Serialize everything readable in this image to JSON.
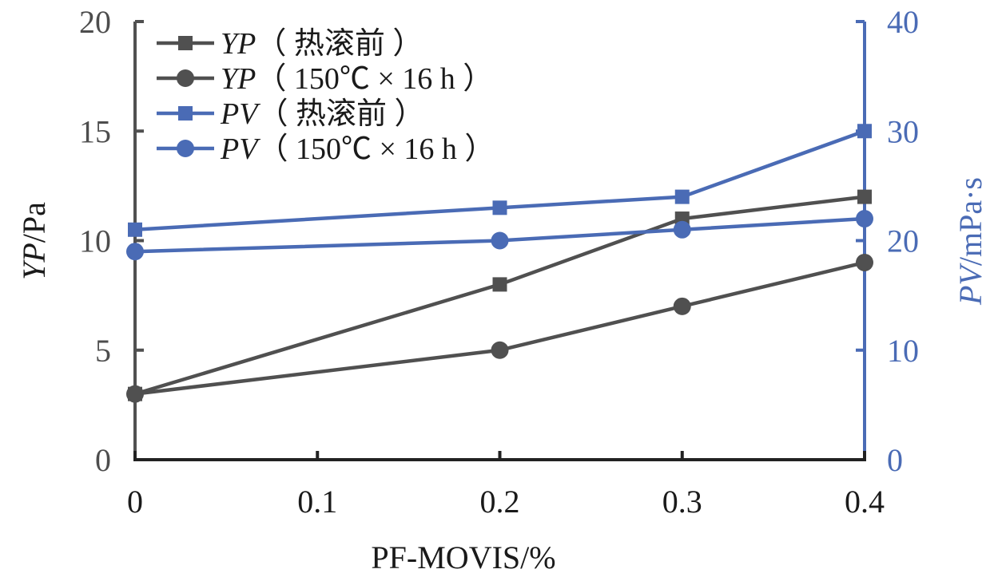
{
  "chart_data": {
    "type": "line",
    "title": "",
    "xlabel": "PF-MOVIS/%",
    "ylabel": "YP/Pa",
    "ylabel_italic": "YP",
    "ylabel_unit": "/Pa",
    "y2label": "PV/mPa·s",
    "y2label_italic": "PV",
    "y2label_unit": "/mPa·s",
    "x": [
      0,
      0.2,
      0.3,
      0.4
    ],
    "xlim": [
      0,
      0.4
    ],
    "ylim": [
      0,
      20
    ],
    "y2lim": [
      0,
      40
    ],
    "xticks": [
      "0",
      "0.1",
      "0.2",
      "0.3",
      "0.4"
    ],
    "xtick_values": [
      0,
      0.1,
      0.2,
      0.3,
      0.4
    ],
    "yticks": [
      "0",
      "5",
      "10",
      "15",
      "20"
    ],
    "ytick_values": [
      0,
      5,
      10,
      15,
      20
    ],
    "y2ticks": [
      "0",
      "10",
      "20",
      "30",
      "40"
    ],
    "y2tick_values": [
      0,
      10,
      20,
      30,
      40
    ],
    "grid": false,
    "legend_position": "top-left",
    "colors": {
      "yp": "#505050",
      "pv": "#4a6bb5",
      "axis_x": "#222222"
    },
    "series": [
      {
        "name": "YP（热滚前）",
        "italic": "YP",
        "suffix": "（ 热滚前 ）",
        "axis": "left",
        "marker": "square",
        "color": "#505050",
        "values": [
          3,
          8,
          11,
          12
        ]
      },
      {
        "name": "YP（150℃ × 16 h）",
        "italic": "YP",
        "suffix": "（ 150℃ × 16 h ）",
        "axis": "left",
        "marker": "circle",
        "color": "#505050",
        "values": [
          3,
          5,
          7,
          9
        ]
      },
      {
        "name": "PV（热滚前）",
        "italic": "PV",
        "suffix": "（ 热滚前 ）",
        "axis": "right",
        "marker": "square",
        "color": "#4a6bb5",
        "values": [
          21,
          23,
          24,
          30
        ]
      },
      {
        "name": "PV（150℃ × 16 h）",
        "italic": "PV",
        "suffix": "（ 150℃ × 16 h ）",
        "axis": "right",
        "marker": "circle",
        "color": "#4a6bb5",
        "values": [
          19,
          20,
          21,
          22
        ]
      }
    ]
  }
}
